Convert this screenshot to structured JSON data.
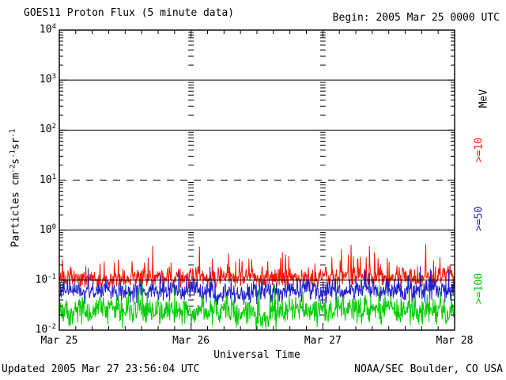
{
  "header": {
    "title": "GOES11 Proton Flux (5 minute data)",
    "begin_label": "Begin: 2005 Mar 25 0000 UTC"
  },
  "footer": {
    "updated": "Updated 2005 Mar 27 23:56:04 UTC",
    "source": "NOAA/SEC Boulder, CO USA"
  },
  "colors": {
    "axis": "#000000",
    "background": "#ffffff",
    "series_red": "#fa1400",
    "series_blue": "#2121cc",
    "series_green": "#00cd00"
  },
  "chart_data": {
    "type": "line",
    "title": "GOES11 Proton Flux (5 minute data)",
    "begin_label": "Begin: 2005 Mar 25 0000 UTC",
    "xlabel": "Universal Time",
    "ylabel_parts": [
      {
        "text": "Particles cm"
      },
      {
        "sup": "-2"
      },
      {
        "text": "s"
      },
      {
        "sup": "-1"
      },
      {
        "text": "sr"
      },
      {
        "sup": "-1"
      }
    ],
    "legend_unit": "MeV",
    "y_ticks": [
      {
        "base": "10",
        "exp": "4",
        "log10": 4
      },
      {
        "base": "10",
        "exp": "3",
        "log10": 3
      },
      {
        "base": "10",
        "exp": "2",
        "log10": 2
      },
      {
        "base": "10",
        "exp": "1",
        "log10": 1
      },
      {
        "base": "10",
        "exp": "0",
        "log10": 0
      },
      {
        "base": "10",
        "exp": "-1",
        "log10": -1
      },
      {
        "base": "10",
        "exp": "-2",
        "log10": -2
      }
    ],
    "x_ticks": [
      "Mar 25",
      "Mar 26",
      "Mar 27",
      "Mar 28"
    ],
    "ylim_log10": [
      -2,
      4
    ],
    "x_range_days": 3,
    "cadence_minutes": 5,
    "minor_x_tick_hours": 3,
    "grid": {
      "solid_decades_log10": [
        3,
        2,
        0,
        -1
      ],
      "dashed_decades_log10": [
        1
      ],
      "day_boundary_tick_columns_at_days": [
        1,
        2
      ]
    },
    "series": [
      {
        "label": ">=10",
        "unit": "MeV",
        "color": "#fa1400",
        "approx_median_flux": 0.13,
        "approx_min_flux": 0.07,
        "approx_max_flux": 0.5,
        "render": {
          "seed": 11,
          "base_log10": -0.95,
          "sigma_log10": 0.11,
          "spike_prob": 0.09,
          "spike_amp": 0.55,
          "clamp_log10": [
            -1.15,
            -0.28
          ]
        }
      },
      {
        "label": ">=50",
        "unit": "MeV",
        "color": "#2121cc",
        "approx_median_flux": 0.06,
        "approx_min_flux": 0.03,
        "approx_max_flux": 0.2,
        "render": {
          "seed": 23,
          "base_log10": -1.22,
          "sigma_log10": 0.12,
          "spike_prob": 0.06,
          "spike_amp": 0.38,
          "clamp_log10": [
            -1.56,
            -0.72
          ]
        }
      },
      {
        "label": ">=100",
        "unit": "MeV",
        "color": "#00cd00",
        "approx_median_flux": 0.025,
        "approx_min_flux": 0.01,
        "approx_max_flux": 0.09,
        "render": {
          "seed": 37,
          "base_log10": -1.62,
          "sigma_log10": 0.16,
          "spike_prob": 0.06,
          "spike_amp": 0.38,
          "clamp_log10": [
            -2.0,
            -1.05
          ]
        }
      }
    ]
  }
}
